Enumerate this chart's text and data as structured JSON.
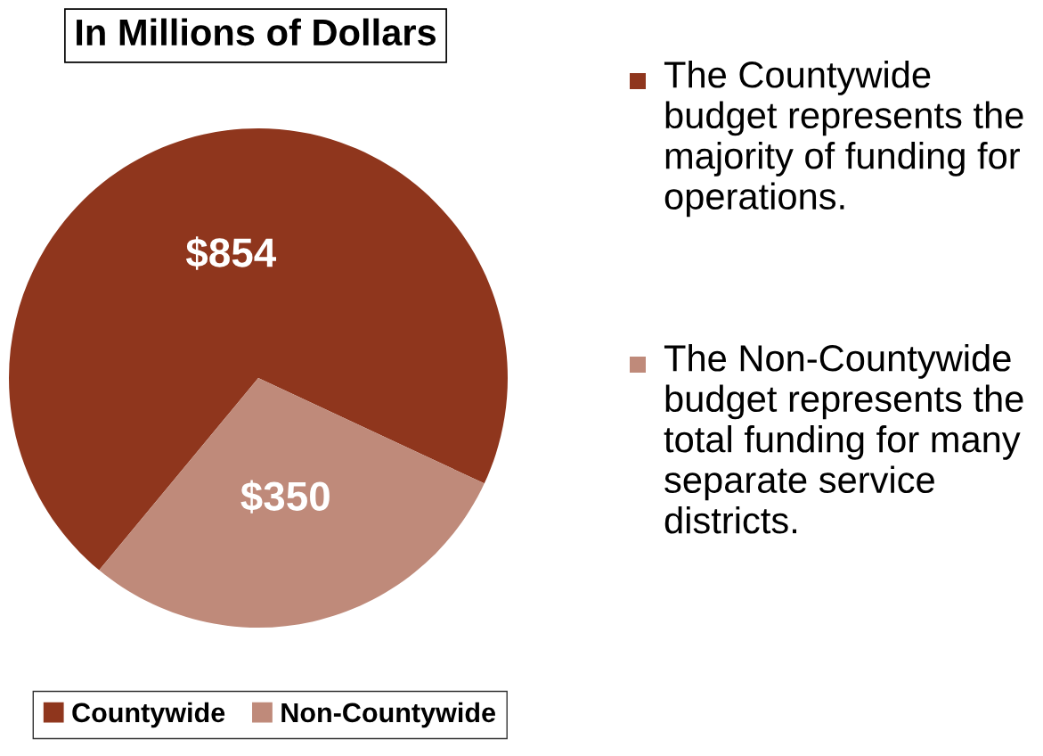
{
  "chart_data": {
    "type": "pie",
    "title": "In Millions of Dollars",
    "categories": [
      "Countywide",
      "Non-Countywide"
    ],
    "values": [
      854,
      350
    ],
    "colors": [
      "#8f361d",
      "#bf8a7a"
    ],
    "value_labels": [
      "$854",
      "$350"
    ],
    "legend": "bottom left",
    "annotations": [
      "The Countywide budget represents the majority of funding for operations.",
      "The Non-Countywide budget represents the total funding for many separate service districts."
    ]
  }
}
